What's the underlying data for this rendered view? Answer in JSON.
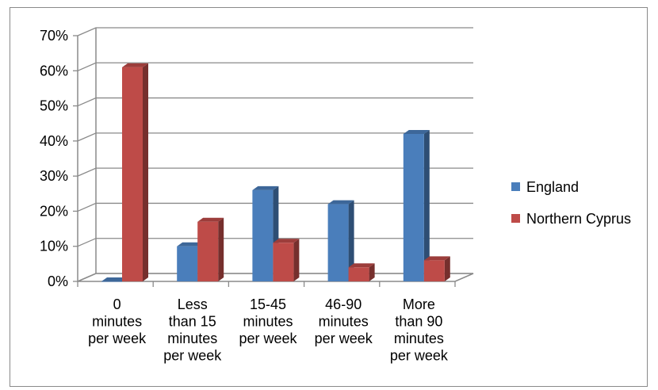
{
  "chart_data": {
    "type": "bar",
    "title": "",
    "xlabel": "",
    "ylabel": "",
    "ylim": [
      0,
      70
    ],
    "yticks": [
      "0%",
      "10%",
      "20%",
      "30%",
      "40%",
      "50%",
      "60%",
      "70%"
    ],
    "categories": [
      [
        "0",
        "minutes",
        "per week"
      ],
      [
        "Less",
        "than 15",
        "minutes",
        "per week"
      ],
      [
        "15-45",
        "minutes",
        "per week"
      ],
      [
        "46-90",
        "minutes",
        "per week"
      ],
      [
        "More",
        "than 90",
        "minutes",
        "per week"
      ]
    ],
    "series": [
      {
        "name": "England",
        "color": "#4a7ebb",
        "values": [
          0,
          10,
          26,
          22,
          42
        ]
      },
      {
        "name": "Northern Cyprus",
        "color": "#be4b48",
        "values": [
          61,
          17,
          11,
          4,
          6
        ]
      }
    ],
    "grid": true,
    "legend_position": "right",
    "three_d": true
  }
}
